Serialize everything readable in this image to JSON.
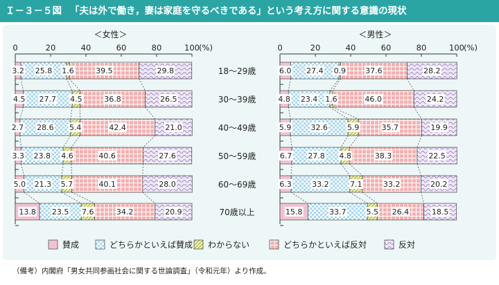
{
  "header": {
    "code": "Ｉ－３－５図",
    "title": "「夫は外で働き，妻は家庭を守るべきである」という考え方に関する意識の現状"
  },
  "note": "（備考）内閣府「男女共同参画社会に関する世論調査」（令和元年）より作成。",
  "colors": {
    "header": "#2aa5a4",
    "panel": "#eef7f7",
    "sansei": "#f3c2d2",
    "dochira_sansei": "#a6d8ef",
    "wakaranai": "#eef0b0",
    "dochira_hantai": "#f4b0b0",
    "hantai": "#e6ddf0"
  },
  "chart_data": {
    "type": "stacked-bar-horizontal",
    "xlim": [
      0,
      100
    ],
    "ticks": [
      "0",
      "20",
      "40",
      "60",
      "80",
      "100"
    ],
    "unit": "(%)",
    "categories": [
      "18～29歳",
      "30～39歳",
      "40～49歳",
      "50～59歳",
      "60～69歳",
      "70歳以上"
    ],
    "legend": [
      "賛成",
      "どちらかといえば賛成",
      "わからない",
      "どちらかといえば反対",
      "反対"
    ],
    "panels": [
      {
        "title": "＜女性＞",
        "series": [
          {
            "name": "賛成",
            "values": [
              3.2,
              4.5,
              2.7,
              3.3,
              5.0,
              13.8
            ],
            "labels": [
              "3.2",
              "4.5",
              "2.7",
              "3.3",
              "5.0",
              "13.8"
            ]
          },
          {
            "name": "どちらかといえば賛成",
            "values": [
              25.8,
              27.7,
              28.6,
              23.8,
              21.3,
              23.5
            ],
            "labels": [
              "25.8",
              "27.7",
              "28.6",
              "23.8",
              "21.3",
              "23.5"
            ]
          },
          {
            "name": "わからない",
            "values": [
              1.6,
              4.5,
              5.4,
              4.6,
              5.7,
              7.6
            ],
            "labels": [
              "1.6",
              "4.5",
              "5.4",
              "4.6",
              "5.7",
              "7.6"
            ]
          },
          {
            "name": "どちらかといえば反対",
            "values": [
              39.5,
              36.8,
              42.4,
              40.6,
              40.1,
              34.2
            ],
            "labels": [
              "39.5",
              "36.8",
              "42.4",
              "40.6",
              "40.1",
              "34.2"
            ]
          },
          {
            "name": "反対",
            "values": [
              29.8,
              26.5,
              21.0,
              27.6,
              28.0,
              20.9
            ],
            "labels": [
              "29.8",
              "26.5",
              "21.0",
              "27.6",
              "28.0",
              "20.9"
            ]
          }
        ]
      },
      {
        "title": "＜男性＞",
        "series": [
          {
            "name": "賛成",
            "values": [
              6.0,
              4.8,
              5.9,
              6.7,
              6.3,
              15.8
            ],
            "labels": [
              "6.0",
              "4.8",
              "5.9",
              "6.7",
              "6.3",
              "15.8"
            ]
          },
          {
            "name": "どちらかといえば賛成",
            "values": [
              27.4,
              23.4,
              32.6,
              27.8,
              33.2,
              33.7
            ],
            "labels": [
              "27.4",
              "23.4",
              "32.6",
              "27.8",
              "33.2",
              "33.7"
            ]
          },
          {
            "name": "わからない",
            "values": [
              0.9,
              1.6,
              5.9,
              4.8,
              7.1,
              5.5
            ],
            "labels": [
              "0.9",
              "1.6",
              "5.9",
              "4.8",
              "7.1",
              "5.5"
            ]
          },
          {
            "name": "どちらかといえば反対",
            "values": [
              37.6,
              46.0,
              35.7,
              38.3,
              33.2,
              26.4
            ],
            "labels": [
              "37.6",
              "46.0",
              "35.7",
              "38.3",
              "33.2",
              "26.4"
            ]
          },
          {
            "name": "反対",
            "values": [
              28.2,
              24.2,
              19.9,
              22.5,
              20.2,
              18.5
            ],
            "labels": [
              "28.2",
              "24.2",
              "19.9",
              "22.5",
              "20.2",
              "18.5"
            ]
          }
        ]
      }
    ]
  }
}
